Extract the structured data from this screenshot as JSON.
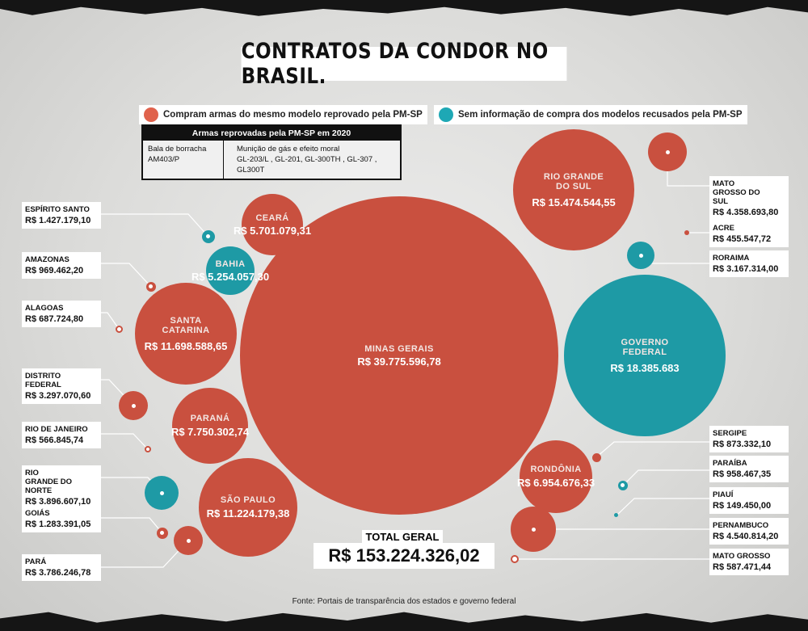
{
  "title": "CONTRATOS DA CONDOR NO BRASIL.",
  "legend": {
    "red": "Compram armas do mesmo modelo reprovado pela PM-SP",
    "teal": "Sem informação de compra dos modelos recusados pela PM-SP"
  },
  "colors": {
    "red": "#c9503f",
    "teal": "#1e9aa5"
  },
  "table": {
    "header": "Armas reprovadas pela PM-SP em 2020",
    "c1_title": "Bala de borracha",
    "c1_value": "AM403/P",
    "c2_title": "Munição de gás e efeito moral",
    "c2_value": "GL-203/L , GL-201, GL-300TH , GL-307 , GL300T"
  },
  "chart_data": {
    "type": "bubble",
    "title": "CONTRATOS DA CONDOR NO BRASIL.",
    "unit": "R$",
    "bubbles": [
      {
        "name": "MINAS GERAIS",
        "label": "R$ 39.775.596,78",
        "value": 39775596.78,
        "group": "red"
      },
      {
        "name": "GOVERNO FEDERAL",
        "label": "R$ 18.385.683",
        "value": 18385683,
        "group": "teal"
      },
      {
        "name": "RIO GRANDE DO SUL",
        "label": "R$ 15.474.544,55",
        "value": 15474544.55,
        "group": "red"
      },
      {
        "name": "SANTA CATARINA",
        "label": "R$ 11.698.588,65",
        "value": 11698588.65,
        "group": "red"
      },
      {
        "name": "SÃO PAULO",
        "label": "R$ 11.224.179,38",
        "value": 11224179.38,
        "group": "red"
      },
      {
        "name": "PARANÁ",
        "label": "R$ 7.750.302,74",
        "value": 7750302.74,
        "group": "red"
      },
      {
        "name": "RONDÔNIA",
        "label": "R$ 6.954.676,33",
        "value": 6954676.33,
        "group": "red"
      },
      {
        "name": "CEARÁ",
        "label": "R$ 5.701.079,31",
        "value": 5701079.31,
        "group": "red"
      },
      {
        "name": "BAHIA",
        "label": "R$ 5.254.057,30",
        "value": 5254057.3,
        "group": "teal"
      },
      {
        "name": "PERNAMBUCO",
        "label": "R$ 4.540.814,20",
        "value": 4540814.2,
        "group": "red"
      },
      {
        "name": "MATO GROSSO DO SUL",
        "label": "R$ 4.358.693,80",
        "value": 4358693.8,
        "group": "red"
      },
      {
        "name": "RIO GRANDE DO NORTE",
        "label": "R$ 3.896.607,10",
        "value": 3896607.1,
        "group": "teal"
      },
      {
        "name": "PARÁ",
        "label": "R$ 3.786.246,78",
        "value": 3786246.78,
        "group": "red"
      },
      {
        "name": "DISTRITO FEDERAL",
        "label": "R$ 3.297.070,60",
        "value": 3297070.6,
        "group": "red"
      },
      {
        "name": "RORAIMA",
        "label": "R$ 3.167.314,00",
        "value": 3167314.0,
        "group": "teal"
      },
      {
        "name": "ESPÍRITO SANTO",
        "label": "R$ 1.427.179,10",
        "value": 1427179.1,
        "group": "teal"
      },
      {
        "name": "GOIÁS",
        "label": "R$ 1.283.391,05",
        "value": 1283391.05,
        "group": "red"
      },
      {
        "name": "AMAZONAS",
        "label": "R$ 969.462,20",
        "value": 969462.2,
        "group": "red"
      },
      {
        "name": "PARAÍBA",
        "label": "R$ 958.467,35",
        "value": 958467.35,
        "group": "teal"
      },
      {
        "name": "SERGIPE",
        "label": "R$ 873.332,10",
        "value": 873332.1,
        "group": "red"
      },
      {
        "name": "ALAGOAS",
        "label": "R$ 687.724,80",
        "value": 687724.8,
        "group": "red"
      },
      {
        "name": "MATO GROSSO",
        "label": "R$ 587.471,44",
        "value": 587471.44,
        "group": "red"
      },
      {
        "name": "RIO DE JANEIRO",
        "label": "R$ 566.845,74",
        "value": 566845.74,
        "group": "red"
      },
      {
        "name": "ACRE",
        "label": "R$ 455.547,72",
        "value": 455547.72,
        "group": "red"
      },
      {
        "name": "PIAUÍ",
        "label": "R$ 149.450,00",
        "value": 149450.0,
        "group": "teal"
      }
    ],
    "total_label": "TOTAL GERAL",
    "total_value": "R$ 153.224.326,02"
  },
  "source": "Fonte: Portais de transparência dos estados e governo federal"
}
